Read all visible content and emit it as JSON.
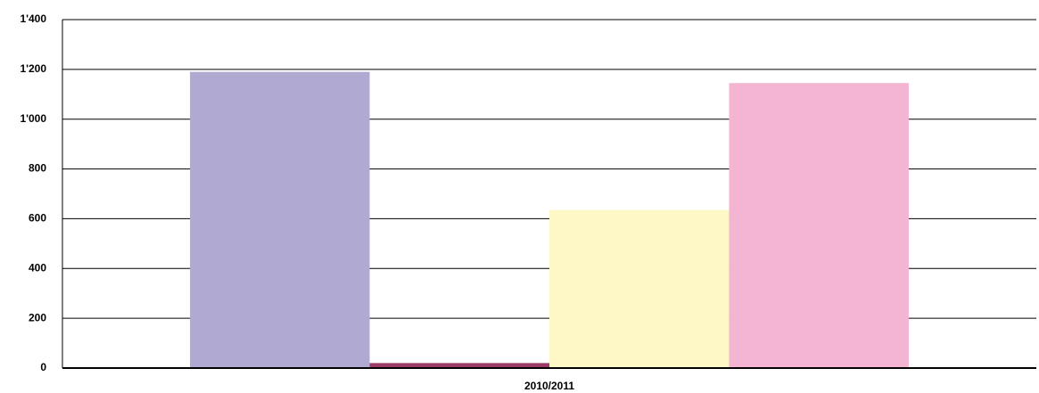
{
  "chart_data": {
    "type": "bar",
    "categories": [
      "2010/2011"
    ],
    "series": [
      {
        "color": "#b0a9d1",
        "values": [
          1190
        ]
      },
      {
        "color": "#9b3a66",
        "values": [
          20
        ]
      },
      {
        "color": "#fdf8c6",
        "values": [
          635
        ]
      },
      {
        "color": "#f3b5d1",
        "values": [
          1145
        ]
      }
    ],
    "ylim": [
      0,
      1400
    ],
    "yticks": [
      0,
      200,
      400,
      600,
      800,
      {
        "value": 1000,
        "label": "1'000"
      },
      {
        "value": 1200,
        "label": "1'200"
      },
      {
        "value": 1400,
        "label": "1'400"
      }
    ],
    "grid": true
  }
}
